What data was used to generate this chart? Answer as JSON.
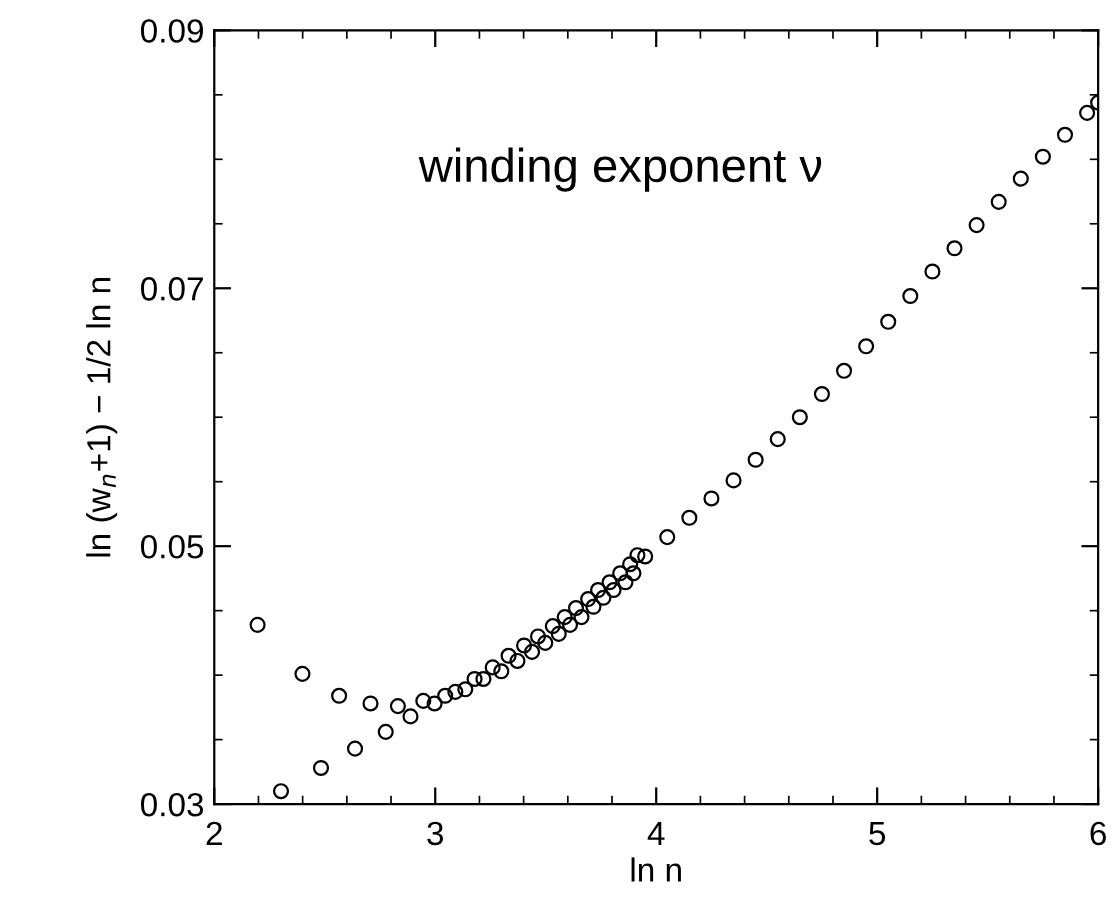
{
  "chart_data": {
    "type": "scatter",
    "xlabel": "ln n",
    "ylabel": "ln (w$_{n}$+1) − 1/2 ln n",
    "annotations": [
      "winding exponent ν"
    ],
    "marker": "circle",
    "grid": false,
    "xlim": [
      2,
      6
    ],
    "ylim": [
      0.03,
      0.09
    ],
    "xticks": [
      2,
      {
        "value": 2.2,
        "label": null
      },
      {
        "value": 2.4,
        "label": null
      },
      {
        "value": 2.6,
        "label": null
      },
      {
        "value": 2.8,
        "label": null
      },
      3,
      {
        "value": 3.2,
        "label": null
      },
      {
        "value": 3.4,
        "label": null
      },
      {
        "value": 3.6,
        "label": null
      },
      {
        "value": 3.8,
        "label": null
      },
      4,
      {
        "value": 4.2,
        "label": null
      },
      {
        "value": 4.4,
        "label": null
      },
      {
        "value": 4.6,
        "label": null
      },
      {
        "value": 4.8,
        "label": null
      },
      5,
      {
        "value": 5.2,
        "label": null
      },
      {
        "value": 5.4,
        "label": null
      },
      {
        "value": 5.6,
        "label": null
      },
      {
        "value": 5.8,
        "label": null
      },
      6
    ],
    "yticks": [
      0.03,
      {
        "value": 0.035,
        "label": null
      },
      {
        "value": 0.04,
        "label": null
      },
      {
        "value": 0.045,
        "label": null
      },
      0.05,
      {
        "value": 0.055,
        "label": null
      },
      {
        "value": 0.06,
        "label": null
      },
      {
        "value": 0.065,
        "label": null
      },
      0.07,
      {
        "value": 0.075,
        "label": null
      },
      {
        "value": 0.08,
        "label": null
      },
      {
        "value": 0.085,
        "label": null
      },
      0.09
    ],
    "series": [
      {
        "color": "#000000",
        "x": [
          2.196,
          2.302,
          2.399,
          2.483,
          2.565,
          2.637,
          2.707,
          2.776,
          2.831,
          2.888,
          2.946,
          2.997,
          3.045,
          3.091,
          3.136,
          3.178,
          3.218,
          3.26,
          3.299,
          3.332,
          3.372,
          3.402,
          3.438,
          3.465,
          3.498,
          3.532,
          3.559,
          3.586,
          3.61,
          3.637,
          3.662,
          3.692,
          3.716,
          3.737,
          3.761,
          3.789,
          3.807,
          3.837,
          3.861,
          3.882,
          3.897,
          3.915,
          3.95,
          4.05,
          4.15,
          4.25,
          4.35,
          4.45,
          4.55,
          4.65,
          4.75,
          4.85,
          4.95,
          5.05,
          5.15,
          5.25,
          5.35,
          5.45,
          5.55,
          5.65,
          5.75,
          5.85,
          5.95,
          6.0
        ],
        "values": [
          0.0439,
          0.031,
          0.0401,
          0.0328,
          0.0384,
          0.0343,
          0.0378,
          0.0356,
          0.0376,
          0.0368,
          0.038,
          0.0378,
          0.0384,
          0.0387,
          0.0389,
          0.0397,
          0.0397,
          0.0406,
          0.0403,
          0.0415,
          0.0411,
          0.0423,
          0.0418,
          0.043,
          0.0425,
          0.0438,
          0.0432,
          0.0445,
          0.0439,
          0.0452,
          0.0445,
          0.0459,
          0.0453,
          0.0466,
          0.046,
          0.0472,
          0.0466,
          0.0479,
          0.0472,
          0.0486,
          0.0479,
          0.0493,
          0.0492,
          0.0507,
          0.0522,
          0.0537,
          0.0551,
          0.0567,
          0.0583,
          0.06,
          0.0618,
          0.0636,
          0.0655,
          0.0674,
          0.0694,
          0.0713,
          0.0731,
          0.0749,
          0.0767,
          0.0785,
          0.0802,
          0.0819,
          0.0836,
          0.0844
        ]
      }
    ]
  }
}
